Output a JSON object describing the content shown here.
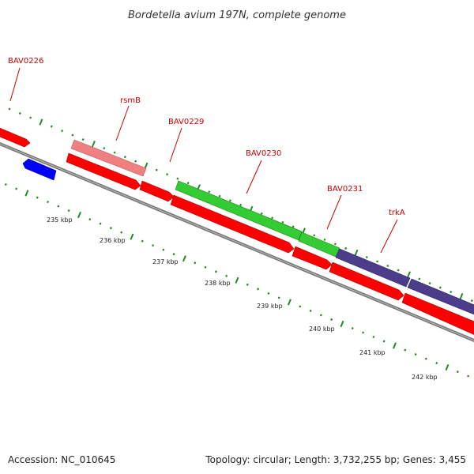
{
  "title": "Bordetella avium 197N, complete genome",
  "genes": [
    {
      "label": "BAV0226",
      "color": "#ff0000"
    },
    {
      "label": "rsmB",
      "color": "#f08080"
    },
    {
      "label": "BAV0229",
      "color": "#ff0000"
    },
    {
      "label": "BAV0230",
      "color": "#33cc33"
    },
    {
      "label": "BAV0231",
      "color": "#33cc33"
    },
    {
      "label": "trkA",
      "color": "#4b3c8c"
    }
  ],
  "ticks": [
    "235 kbp",
    "236 kbp",
    "237 kbp",
    "238 kbp",
    "239 kbp",
    "240 kbp",
    "241 kbp",
    "242 kbp"
  ],
  "colors": {
    "cds_forward": "#ff0000",
    "cds_reverse": "#0000ff",
    "backbone": "#808080",
    "tick_marks": "#228b22",
    "label_text": "#cc0000"
  },
  "footer": {
    "accession": "Accession: NC_010645",
    "summary": "Topology: circular; Length: 3,732,255 bp; Genes: 3,455"
  }
}
